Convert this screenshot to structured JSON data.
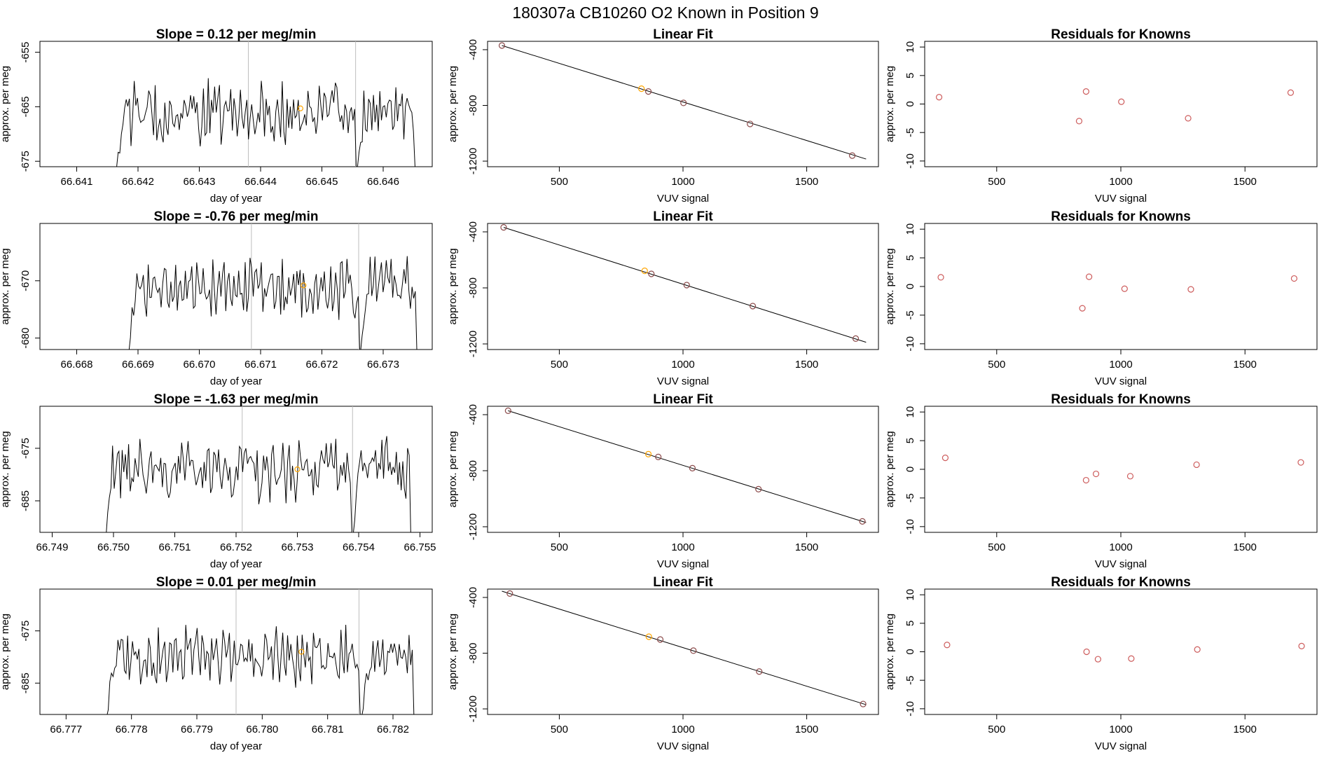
{
  "suptitle": "180307a      CB10260    O2 Known in Position  9",
  "colors": {
    "line": "#000000",
    "vline": "#bebebe",
    "highlight": "#ffa500",
    "residual": "#cd5c5c"
  },
  "chart_data": [
    {
      "type": "line",
      "title": "Slope =  0.12  per meg/min",
      "xlabel": "day of year",
      "ylabel": "approx. per meg",
      "xlim": [
        66.6404,
        66.6468
      ],
      "ylim": [
        -676,
        -653
      ],
      "xticks": [
        "66.641",
        "66.642",
        "66.643",
        "66.644",
        "66.645",
        "66.646"
      ],
      "yticks": [
        "-655",
        "-665",
        "-675"
      ],
      "vlines": [
        66.6438,
        66.64555
      ],
      "highlight": {
        "x": 66.64465,
        "y": -665.3
      },
      "series": [
        {
          "segments": [
            {
              "x0": 66.64165,
              "x1": 66.64556,
              "start": -676.2,
              "base": -666.2,
              "amp": 4.5,
              "end": -676.2
            },
            {
              "x0": 66.64558,
              "x1": 66.64652,
              "start": -676.2,
              "base": -666.0,
              "amp": 3.5,
              "end": -676.2
            }
          ]
        }
      ]
    },
    {
      "type": "scatter",
      "title": "Linear Fit",
      "xlabel": "VUV signal",
      "ylabel": "approx. per meg",
      "xlim": [
        210,
        1790
      ],
      "ylim": [
        -1240,
        -340
      ],
      "xticks": [
        500,
        1000,
        1500
      ],
      "yticks": [
        -400,
        -800,
        -1200
      ],
      "x": [
        268,
        832,
        860,
        1002,
        1271,
        1684
      ],
      "y": [
        -370,
        -680,
        -700,
        -782,
        -933,
        -1160
      ],
      "highlight_index": 1,
      "fit": {
        "x": [
          268,
          1740
        ],
        "y": [
          -370,
          -1185
        ]
      }
    },
    {
      "type": "scatter",
      "title": "Residuals for Knowns",
      "xlabel": "VUV signal",
      "ylabel": "approx. per meg",
      "xlim": [
        210,
        1790
      ],
      "ylim": [
        -11,
        11
      ],
      "xticks": [
        500,
        1000,
        1500
      ],
      "yticks": [
        10,
        5,
        0,
        -5,
        -10
      ],
      "x": [
        268,
        832,
        860,
        1002,
        1271,
        1684
      ],
      "y": [
        1.2,
        -3.0,
        2.2,
        0.4,
        -2.5,
        2.0
      ]
    },
    {
      "type": "line",
      "title": "Slope =  -0.76  per meg/min",
      "xlabel": "day of year",
      "ylabel": "approx. per meg",
      "xlim": [
        66.6674,
        66.6738
      ],
      "ylim": [
        -682,
        -660
      ],
      "xticks": [
        "66.668",
        "66.669",
        "66.670",
        "66.671",
        "66.672",
        "66.673"
      ],
      "yticks": [
        "-670",
        "-680"
      ],
      "vlines": [
        66.67085,
        66.6726
      ],
      "highlight": {
        "x": 66.6717,
        "y": -670.8
      },
      "series": [
        {
          "segments": [
            {
              "x0": 66.66885,
              "x1": 66.67262,
              "start": -682.5,
              "base": -671.5,
              "amp": 4.0,
              "end": -682.5
            },
            {
              "x0": 66.67263,
              "x1": 66.67355,
              "start": -682.5,
              "base": -670.5,
              "amp": 4.0,
              "end": -682.5
            }
          ]
        }
      ]
    },
    {
      "type": "scatter",
      "title": "Linear Fit",
      "xlabel": "VUV signal",
      "ylabel": "approx. per meg",
      "xlim": [
        210,
        1790
      ],
      "ylim": [
        -1240,
        -340
      ],
      "xticks": [
        500,
        1000,
        1500
      ],
      "yticks": [
        -400,
        -800,
        -1200
      ],
      "x": [
        275,
        845,
        872,
        1015,
        1282,
        1698
      ],
      "y": [
        -368,
        -678,
        -700,
        -780,
        -930,
        -1162
      ],
      "highlight_index": 1,
      "fit": {
        "x": [
          275,
          1740
        ],
        "y": [
          -368,
          -1188
        ]
      }
    },
    {
      "type": "scatter",
      "title": "Residuals for Knowns",
      "xlabel": "VUV signal",
      "ylabel": "approx. per meg",
      "xlim": [
        210,
        1790
      ],
      "ylim": [
        -11,
        11
      ],
      "xticks": [
        500,
        1000,
        1500
      ],
      "yticks": [
        10,
        5,
        0,
        -5,
        -10
      ],
      "x": [
        275,
        845,
        872,
        1015,
        1282,
        1698
      ],
      "y": [
        1.6,
        -3.8,
        1.7,
        -0.4,
        -0.5,
        1.4
      ]
    },
    {
      "type": "line",
      "title": "Slope =  -1.63  per meg/min",
      "xlabel": "day of year",
      "ylabel": "approx. per meg",
      "xlim": [
        66.7488,
        66.7552
      ],
      "ylim": [
        -691,
        -667
      ],
      "xticks": [
        "66.749",
        "66.750",
        "66.751",
        "66.752",
        "66.753",
        "66.754",
        "66.755"
      ],
      "yticks": [
        "-675",
        "-685"
      ],
      "vlines": [
        66.7521,
        66.7539
      ],
      "highlight": {
        "x": 66.753,
        "y": -679.0
      },
      "series": [
        {
          "segments": [
            {
              "x0": 66.74988,
              "x1": 66.75389,
              "start": -691.5,
              "base": -679.5,
              "amp": 4.5,
              "end": -691.5
            },
            {
              "x0": 66.75391,
              "x1": 66.75485,
              "start": -691.5,
              "base": -679.0,
              "amp": 5.0,
              "end": -691.5
            }
          ]
        }
      ]
    },
    {
      "type": "scatter",
      "title": "Linear Fit",
      "xlabel": "VUV signal",
      "ylabel": "approx. per meg",
      "xlim": [
        210,
        1790
      ],
      "ylim": [
        -1240,
        -340
      ],
      "xticks": [
        500,
        1000,
        1500
      ],
      "yticks": [
        -400,
        -800,
        -1200
      ],
      "x": [
        293,
        860,
        900,
        1038,
        1305,
        1725
      ],
      "y": [
        -372,
        -682,
        -702,
        -782,
        -932,
        -1162
      ],
      "highlight_index": 1,
      "fit": {
        "x": [
          293,
          1740
        ],
        "y": [
          -372,
          -1170
        ]
      }
    },
    {
      "type": "scatter",
      "title": "Residuals for Knowns",
      "xlabel": "VUV signal",
      "ylabel": "approx. per meg",
      "xlim": [
        210,
        1790
      ],
      "ylim": [
        -11,
        11
      ],
      "xticks": [
        500,
        1000,
        1500
      ],
      "yticks": [
        10,
        5,
        0,
        -5,
        -10
      ],
      "x": [
        293,
        860,
        900,
        1038,
        1305,
        1725
      ],
      "y": [
        2.0,
        -1.9,
        -0.8,
        -1.2,
        0.8,
        1.2
      ]
    },
    {
      "type": "line",
      "title": "Slope =  0.01  per meg/min",
      "xlabel": "day of year",
      "ylabel": "approx. per meg",
      "xlim": [
        66.7766,
        66.7826
      ],
      "ylim": [
        -691,
        -667
      ],
      "xticks": [
        "66.777",
        "66.778",
        "66.779",
        "66.780",
        "66.781",
        "66.782"
      ],
      "yticks": [
        "-675",
        "-685"
      ],
      "vlines": [
        66.7796,
        66.78148
      ],
      "highlight": {
        "x": 66.7806,
        "y": -679.0
      },
      "series": [
        {
          "segments": [
            {
              "x0": 66.77762,
              "x1": 66.7815,
              "start": -691.5,
              "base": -680.0,
              "amp": 4.5,
              "end": -691.5
            },
            {
              "x0": 66.78152,
              "x1": 66.78232,
              "start": -691.5,
              "base": -680.0,
              "amp": 4.0,
              "end": -691.5
            }
          ]
        }
      ]
    },
    {
      "type": "scatter",
      "title": "Linear Fit",
      "xlabel": "VUV signal",
      "ylabel": "approx. per meg",
      "xlim": [
        210,
        1790
      ],
      "ylim": [
        -1240,
        -340
      ],
      "xticks": [
        500,
        1000,
        1500
      ],
      "yticks": [
        -400,
        -800,
        -1200
      ],
      "x": [
        300,
        862,
        908,
        1042,
        1308,
        1728
      ],
      "y": [
        -372,
        -682,
        -702,
        -782,
        -932,
        -1165
      ],
      "highlight_index": 1,
      "fit": {
        "x": [
          268,
          1740
        ],
        "y": [
          -355,
          -1170
        ]
      }
    },
    {
      "type": "scatter",
      "title": "Residuals for Knowns",
      "xlabel": "VUV signal",
      "ylabel": "approx. per meg",
      "xlim": [
        210,
        1790
      ],
      "ylim": [
        -11,
        11
      ],
      "xticks": [
        500,
        1000,
        1500
      ],
      "yticks": [
        10,
        5,
        0,
        -5,
        -10
      ],
      "x": [
        300,
        862,
        908,
        1042,
        1308,
        1728
      ],
      "y": [
        1.2,
        0.0,
        -1.3,
        -1.2,
        0.4,
        1.0
      ]
    }
  ]
}
